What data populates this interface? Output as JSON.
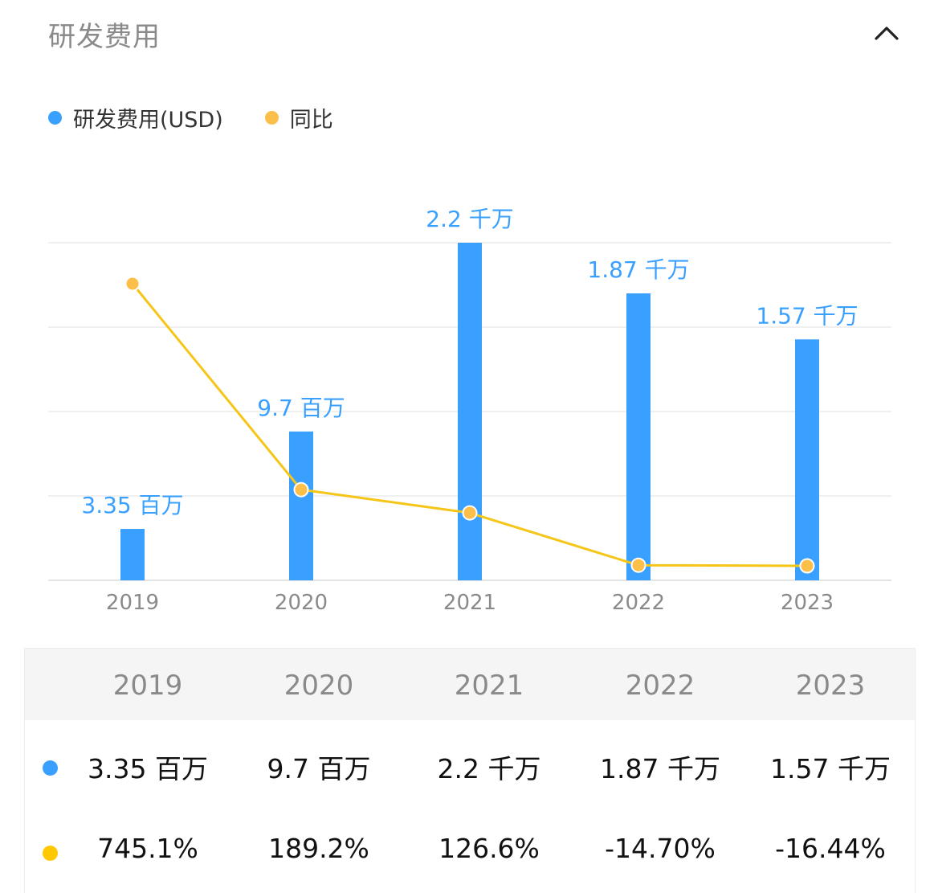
{
  "header": {
    "title": "研发费用",
    "collapse_icon": "chevron-up-icon"
  },
  "legend": [
    {
      "label": "研发费用(USD)",
      "color": "#3aa0ff"
    },
    {
      "label": "同比",
      "color": "#fbbf4a"
    }
  ],
  "chart_data": {
    "type": "bar",
    "categories": [
      "2019",
      "2020",
      "2021",
      "2022",
      "2023"
    ],
    "series": [
      {
        "name": "研发费用(USD)",
        "type": "bar",
        "values": [
          3350000,
          9700000,
          22000000,
          18700000,
          15700000
        ],
        "labels": [
          "3.35 百万",
          "9.7 百万",
          "2.2 千万",
          "1.87 千万",
          "1.57 千万"
        ],
        "color": "#3aa0ff"
      },
      {
        "name": "同比",
        "type": "line",
        "values": [
          745.1,
          189.2,
          126.6,
          -14.7,
          -16.44
        ],
        "labels": [
          "745.1%",
          "189.2%",
          "126.6%",
          "-14.70%",
          "-16.44%"
        ],
        "color": "#f5c518",
        "marker_color": "#fbbf4a"
      }
    ],
    "grid": true,
    "legend_position": "top-left"
  },
  "table": {
    "headers": [
      "2019",
      "2020",
      "2021",
      "2022",
      "2023"
    ],
    "rows": [
      {
        "dot_color": "#3aa0ff",
        "cells": [
          "3.35 百万",
          "9.7 百万",
          "2.2 千万",
          "1.87 千万",
          "1.57 千万"
        ]
      },
      {
        "dot_color": "#ffc800",
        "cells": [
          "745.1%",
          "189.2%",
          "126.6%",
          "-14.70%",
          "-16.44%"
        ]
      }
    ]
  }
}
